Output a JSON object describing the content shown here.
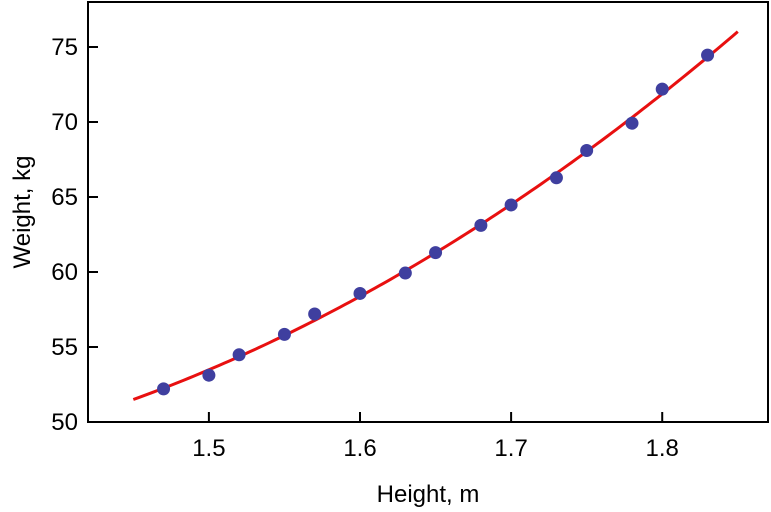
{
  "chart_data": {
    "type": "scatter",
    "title": "",
    "xlabel": "Height,  m",
    "ylabel": "Weight,  kg",
    "xlim": [
      1.42,
      1.87
    ],
    "ylim": [
      50,
      78
    ],
    "x_ticks": [
      1.5,
      1.6,
      1.7,
      1.8
    ],
    "x_tick_labels": [
      "1.5",
      "1.6",
      "1.7",
      "1.8"
    ],
    "y_ticks": [
      50,
      55,
      60,
      65,
      70,
      75
    ],
    "y_tick_labels": [
      "50",
      "55",
      "60",
      "65",
      "70",
      "75"
    ],
    "grid": false,
    "legend": "none",
    "series": [
      {
        "type": "scatter",
        "color": "#3f3f9f",
        "x": [
          1.47,
          1.5,
          1.52,
          1.55,
          1.57,
          1.6,
          1.63,
          1.65,
          1.68,
          1.7,
          1.73,
          1.75,
          1.78,
          1.8,
          1.83
        ],
        "y": [
          52.21,
          53.12,
          54.48,
          55.84,
          57.2,
          58.57,
          59.93,
          61.29,
          63.11,
          64.47,
          66.28,
          68.1,
          69.92,
          72.19,
          74.46
        ]
      },
      {
        "type": "line",
        "color": "#e81010",
        "fit": "quadratic",
        "coefficients": [
          128.81,
          -143.16,
          61.96
        ],
        "x_range": [
          1.45,
          1.85
        ]
      }
    ]
  }
}
